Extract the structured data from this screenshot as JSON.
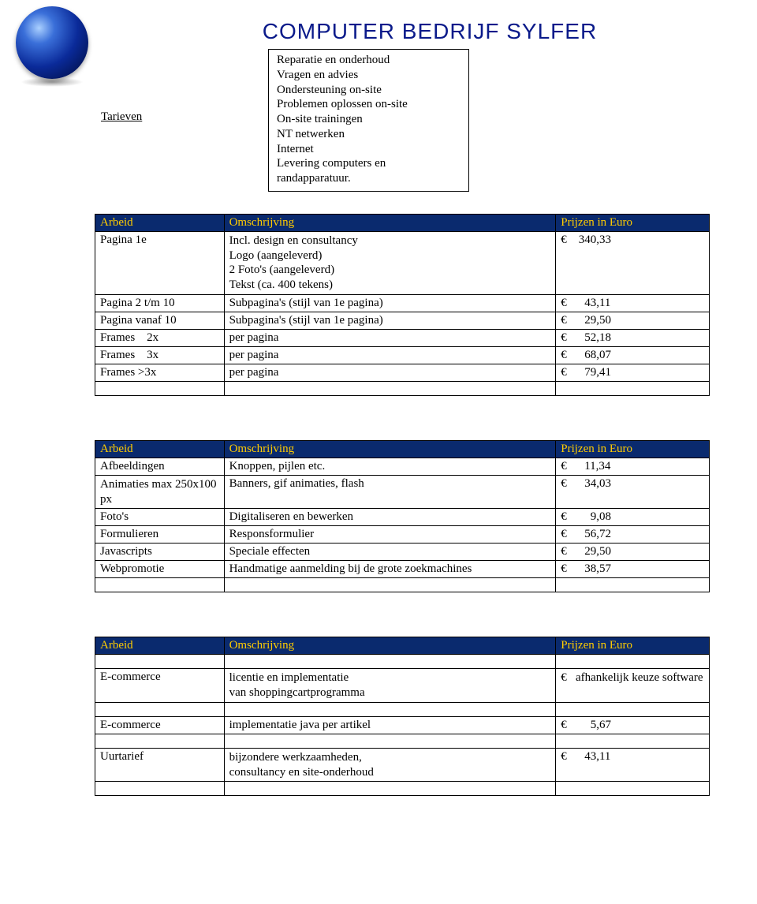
{
  "brand": "COMPUTER BEDRIJF SYLFER",
  "tarieven_label": "Tarieven",
  "infobox": {
    "lines": [
      "Reparatie en onderhoud",
      "Vragen en advies",
      "Ondersteuning on-site",
      "Problemen oplossen on-site",
      "On-site trainingen",
      "NT netwerken",
      "Internet",
      "Levering computers en randapparatuur."
    ]
  },
  "colors": {
    "header_bg": "#0a2a6e",
    "header_fg": "#ffcc00",
    "border": "#000000",
    "brand_color": "#0a1a8a"
  },
  "headers": {
    "c1": "Arbeid",
    "c2": "Omschrijving",
    "c3": "Prijzen in Euro"
  },
  "table1": {
    "rows": [
      {
        "c1": "Pagina 1e",
        "c2": "Incl. design en consultancy\nLogo (aangeleverd)\n2 Foto's (aangeleverd)\nTekst (ca. 400 tekens)",
        "c3": "€    340,33"
      },
      {
        "c1": "Pagina 2 t/m 10",
        "c2": "Subpagina's (stijl van 1e pagina)",
        "c3": "€      43,11"
      },
      {
        "c1": "Pagina vanaf 10",
        "c2": "Subpagina's (stijl van 1e pagina)",
        "c3": "€      29,50"
      },
      {
        "c1": "Frames    2x",
        "c2": "per pagina",
        "c3": "€      52,18"
      },
      {
        "c1": "Frames    3x",
        "c2": "per pagina",
        "c3": "€      68,07"
      },
      {
        "c1": "Frames >3x",
        "c2": "per pagina",
        "c3": "€      79,41"
      }
    ]
  },
  "table2": {
    "rows": [
      {
        "c1": "Afbeeldingen",
        "c2": "Knoppen, pijlen etc.",
        "c3": "€      11,34"
      },
      {
        "c1": "Animaties max 250x100 px",
        "c2": "Banners, gif animaties, flash",
        "c3": "€      34,03"
      },
      {
        "c1": "Foto's",
        "c2": "Digitaliseren en bewerken",
        "c3": "€        9,08"
      },
      {
        "c1": "Formulieren",
        "c2": "Responsformulier",
        "c3": "€      56,72"
      },
      {
        "c1": "Javascripts",
        "c2": "Speciale effecten",
        "c3": "€      29,50"
      },
      {
        "c1": "Webpromotie",
        "c2": "Handmatige aanmelding bij de grote zoekmachines",
        "c3": "€      38,57"
      }
    ]
  },
  "table3": {
    "rows": [
      {
        "c1": "E-commerce",
        "c2": "licentie en implementatie\nvan shoppingcartprogramma",
        "c3": "€   afhankelijk keuze software"
      },
      {
        "c1": "E-commerce",
        "c2": "implementatie java per artikel",
        "c3": "€        5,67"
      },
      {
        "c1": "Uurtarief",
        "c2": "bijzondere werkzaamheden,\nconsultancy en site-onderhoud",
        "c3": "€      43,11"
      }
    ]
  }
}
